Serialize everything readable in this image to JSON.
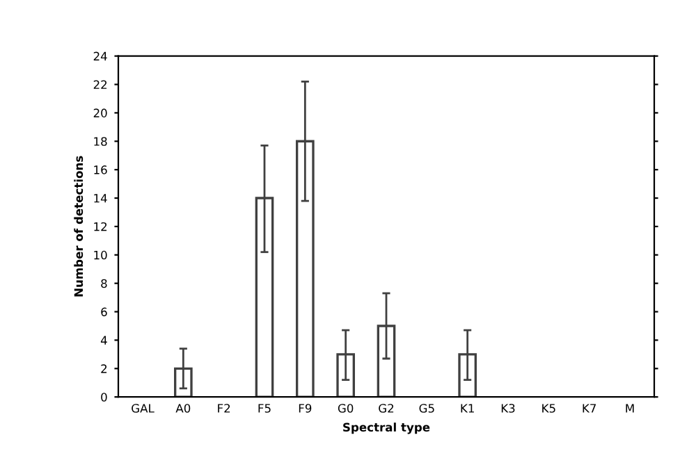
{
  "chart_data": {
    "type": "bar",
    "xlabel": "Spectral type",
    "ylabel": "Number of detections",
    "categories": [
      "GAL",
      "A0",
      "F2",
      "F5",
      "F9",
      "G0",
      "G2",
      "G5",
      "K1",
      "K3",
      "K5",
      "K7",
      "M"
    ],
    "values": [
      null,
      2,
      null,
      14,
      18,
      3,
      5,
      null,
      3,
      null,
      null,
      null,
      null
    ],
    "errors": [
      null,
      [
        0.6,
        3.4
      ],
      null,
      [
        10.2,
        17.7
      ],
      [
        13.8,
        22.2
      ],
      [
        1.2,
        4.7
      ],
      [
        2.7,
        7.3
      ],
      null,
      [
        1.2,
        4.7
      ],
      null,
      null,
      null,
      null
    ],
    "color": "#ffffff",
    "ylim": [
      0,
      24
    ],
    "yticks": [
      0,
      2,
      4,
      6,
      8,
      10,
      12,
      14,
      16,
      18,
      20,
      22,
      24
    ],
    "grid": false,
    "legend": false
  }
}
